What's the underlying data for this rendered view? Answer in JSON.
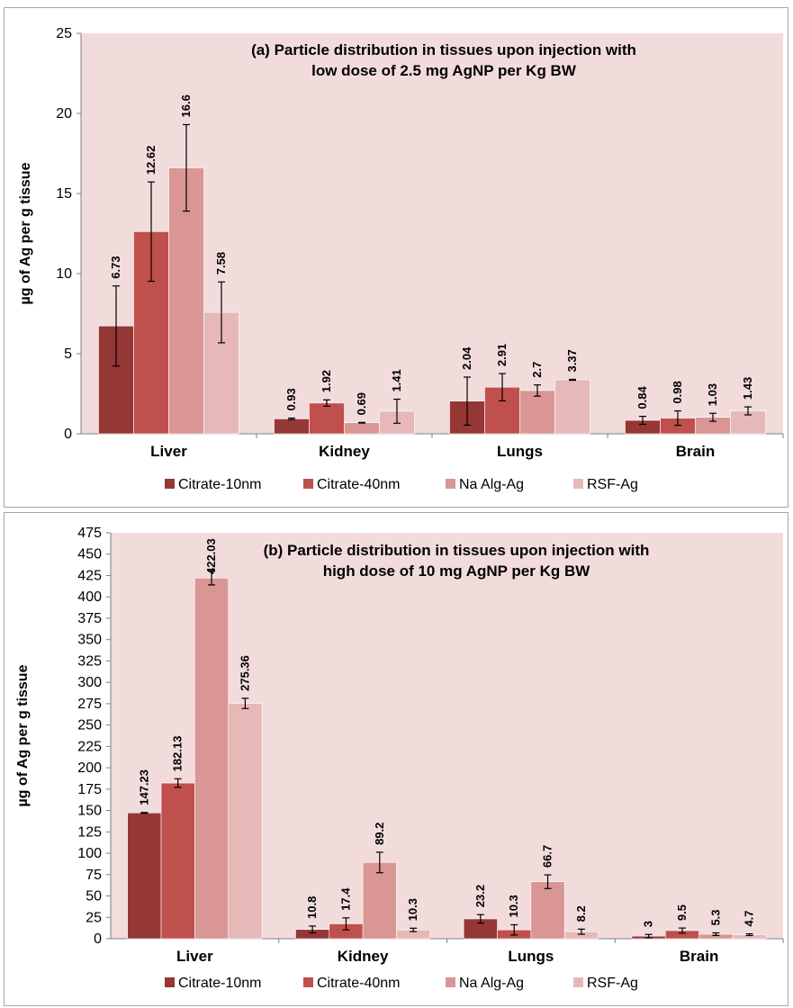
{
  "colors": {
    "plot_bg": "#f2dcdb",
    "series": [
      "#953735",
      "#c0504d",
      "#d99694",
      "#e6b9b8"
    ],
    "axis": "#7f7f7f"
  },
  "chart_data": [
    {
      "type": "bar",
      "title_lines": [
        "(a) Particle distribution  in tissues  upon injection with",
        "low dose  of 2.5 mg AgNP  per Kg  BW"
      ],
      "ylabel": "µg  of Ag per g tissue",
      "xlabel": "",
      "categories": [
        "Liver",
        "Kidney",
        "Lungs",
        "Brain"
      ],
      "ylim": [
        0,
        25
      ],
      "yticks": [
        0,
        5,
        10,
        15,
        20,
        25
      ],
      "legend_position": "bottom",
      "grid": false,
      "series": [
        {
          "name": "Citrate-10nm",
          "values": [
            6.73,
            0.93,
            2.04,
            0.84
          ],
          "errors": [
            2.5,
            0.05,
            1.5,
            0.25
          ]
        },
        {
          "name": "Citrate-40nm",
          "values": [
            12.62,
            1.92,
            2.91,
            0.98
          ],
          "errors": [
            3.1,
            0.2,
            0.85,
            0.45
          ]
        },
        {
          "name": "Na Alg-Ag",
          "values": [
            16.6,
            0.69,
            2.7,
            1.03
          ],
          "errors": [
            2.7,
            0.02,
            0.35,
            0.25
          ]
        },
        {
          "name": "RSF-Ag",
          "values": [
            7.58,
            1.41,
            3.37,
            1.43
          ],
          "errors": [
            1.9,
            0.75,
            0.03,
            0.25
          ]
        }
      ],
      "data_labels": [
        [
          "6.73",
          "0.93",
          "2.04",
          "0.84"
        ],
        [
          "12.62",
          "1.92",
          "2.91",
          "0.98"
        ],
        [
          "16.6",
          "0.69",
          "2.7",
          "1.03"
        ],
        [
          "7.58",
          "1.41",
          "3.37",
          "1.43"
        ]
      ]
    },
    {
      "type": "bar",
      "title_lines": [
        "(b) Particle distribution  in tissues  upon injection with",
        "high dose  of 10 mg AgNP  per Kg  BW"
      ],
      "ylabel": "µg  of Ag per g tissue",
      "xlabel": "",
      "categories": [
        "Liver",
        "Kidney",
        "Lungs",
        "Brain"
      ],
      "ylim": [
        0,
        475
      ],
      "yticks": [
        0,
        25,
        50,
        75,
        100,
        125,
        150,
        175,
        200,
        225,
        250,
        275,
        300,
        325,
        350,
        375,
        400,
        425,
        450,
        475
      ],
      "legend_position": "bottom",
      "grid": false,
      "series": [
        {
          "name": "Citrate-10nm",
          "values": [
            147.23,
            10.8,
            23.2,
            3
          ],
          "errors": [
            0.5,
            4,
            5,
            2
          ]
        },
        {
          "name": "Citrate-40nm",
          "values": [
            182.13,
            17.4,
            10.3,
            9.5
          ],
          "errors": [
            5,
            7,
            6,
            3
          ]
        },
        {
          "name": "Na Alg-Ag",
          "values": [
            422.03,
            89.2,
            66.7,
            5.3
          ],
          "errors": [
            8,
            12,
            8,
            1.5
          ]
        },
        {
          "name": "RSF-Ag",
          "values": [
            275.36,
            10.3,
            8.2,
            4.7
          ],
          "errors": [
            6,
            2,
            3,
            1
          ]
        }
      ],
      "data_labels": [
        [
          "147.23",
          "10.8",
          "23.2",
          "3"
        ],
        [
          "182.13",
          "17.4",
          "10.3",
          "9.5"
        ],
        [
          "422.03",
          "89.2",
          "66.7",
          "5.3"
        ],
        [
          "275.36",
          "10.3",
          "8.2",
          "4.7"
        ]
      ]
    }
  ]
}
